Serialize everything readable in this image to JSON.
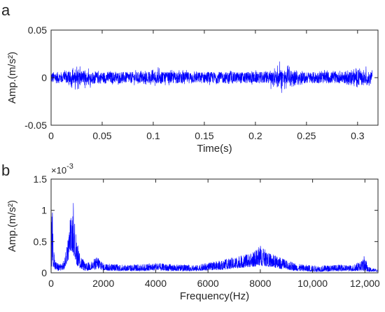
{
  "colors": {
    "signal": "#0000ff",
    "axes": "#262626",
    "background": "#ffffff"
  },
  "chart_data": [
    {
      "panel_label": "a",
      "type": "line",
      "xlabel": "Time(s)",
      "ylabel": "Amp.(m/s²)",
      "xlim": [
        0,
        0.32
      ],
      "ylim": [
        -0.05,
        0.05
      ],
      "x_ticks": [
        0,
        0.05,
        0.1,
        0.15,
        0.2,
        0.25,
        0.3
      ],
      "x_tick_labels": [
        "0",
        "0.05",
        "0.1",
        "0.15",
        "0.2",
        "0.25",
        "0.3"
      ],
      "y_ticks": [
        -0.05,
        0,
        0.05
      ],
      "y_tick_labels": [
        "-0.05",
        "0",
        "0.05"
      ],
      "grid": false,
      "series": [
        {
          "description": "vibration acceleration signal, mostly within ±0.008, with impulses up to about ±0.02",
          "typical_amplitude": 0.006,
          "x": [
            0.0,
            0.01,
            0.025,
            0.04,
            0.055,
            0.07,
            0.085,
            0.1,
            0.115,
            0.13,
            0.145,
            0.16,
            0.175,
            0.19,
            0.205,
            0.225,
            0.24,
            0.255,
            0.27,
            0.285,
            0.3,
            0.315
          ],
          "y_upper": [
            0.01,
            0.011,
            0.022,
            0.012,
            0.01,
            0.009,
            0.01,
            0.012,
            0.009,
            0.01,
            0.011,
            0.009,
            0.01,
            0.011,
            0.01,
            0.021,
            0.012,
            0.01,
            0.011,
            0.01,
            0.014,
            0.016
          ],
          "y_lower": [
            -0.01,
            -0.009,
            -0.016,
            -0.011,
            -0.01,
            -0.009,
            -0.01,
            -0.016,
            -0.009,
            -0.01,
            -0.011,
            -0.009,
            -0.01,
            -0.01,
            -0.01,
            -0.022,
            -0.014,
            -0.01,
            -0.011,
            -0.01,
            -0.018,
            -0.012
          ]
        }
      ]
    },
    {
      "panel_label": "b",
      "type": "line",
      "xlabel": "Frequency(Hz)",
      "ylabel": "Amp.(m/s²)",
      "multiplier_label": "×10",
      "multiplier_exponent": "-3",
      "xlim": [
        0,
        12500
      ],
      "ylim": [
        0,
        1.5
      ],
      "x_ticks": [
        0,
        2000,
        4000,
        6000,
        8000,
        10000,
        12000
      ],
      "x_tick_labels": [
        "0",
        "2000",
        "4000",
        "6000",
        "8000",
        "10,000",
        "12,000"
      ],
      "y_ticks": [
        0,
        0.5,
        1,
        1.5
      ],
      "y_tick_labels": [
        "0",
        "0.5",
        "1",
        "1.5"
      ],
      "grid": false,
      "series": [
        {
          "description": "amplitude spectrum (values in units of 1e-3)",
          "envelope_x": [
            0,
            40,
            80,
            150,
            300,
            500,
            650,
            750,
            800,
            850,
            900,
            950,
            1050,
            1300,
            1600,
            1800,
            2000,
            2500,
            3000,
            3500,
            4000,
            4500,
            5000,
            5500,
            6000,
            6500,
            7000,
            7500,
            7800,
            8000,
            8300,
            8700,
            9000,
            9500,
            10000,
            10500,
            11000,
            11500,
            11900,
            12000,
            12100,
            12500
          ],
          "envelope_y": [
            0.55,
            1.3,
            0.6,
            0.2,
            0.15,
            0.2,
            0.55,
            0.95,
            1.0,
            1.15,
            0.8,
            0.65,
            0.4,
            0.15,
            0.2,
            0.28,
            0.15,
            0.14,
            0.13,
            0.14,
            0.16,
            0.14,
            0.13,
            0.12,
            0.16,
            0.2,
            0.25,
            0.3,
            0.35,
            0.45,
            0.32,
            0.26,
            0.2,
            0.14,
            0.12,
            0.12,
            0.13,
            0.12,
            0.2,
            0.3,
            0.1,
            0.05
          ],
          "floor_y": [
            0.1,
            0.1,
            0.1,
            0.05,
            0.03,
            0.05,
            0.2,
            0.35,
            0.35,
            0.3,
            0.25,
            0.15,
            0.08,
            0.03,
            0.05,
            0.06,
            0.04,
            0.03,
            0.03,
            0.03,
            0.04,
            0.03,
            0.03,
            0.03,
            0.04,
            0.05,
            0.07,
            0.09,
            0.1,
            0.12,
            0.1,
            0.07,
            0.05,
            0.03,
            0.02,
            0.02,
            0.03,
            0.03,
            0.03,
            0.03,
            0.02,
            0.02
          ]
        }
      ]
    }
  ]
}
